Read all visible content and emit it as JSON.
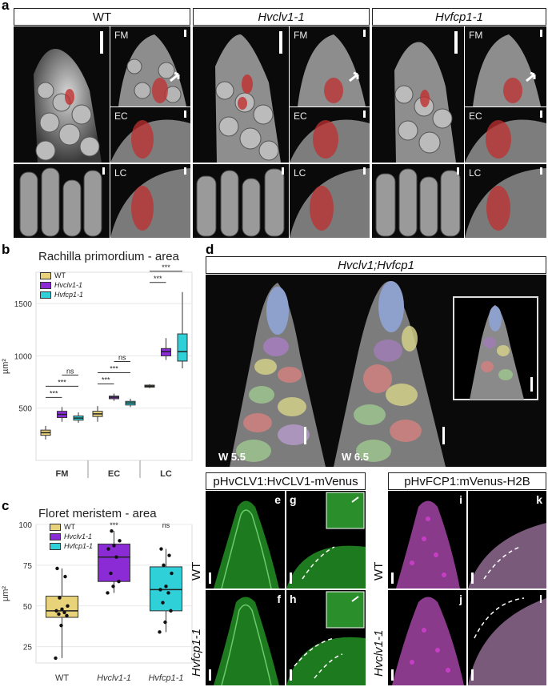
{
  "panels": {
    "a": "a",
    "b": "b",
    "c": "c",
    "d": "d"
  },
  "panel_a": {
    "headers": [
      {
        "text": "WT",
        "italic": false
      },
      {
        "text": "Hvclv1-1",
        "italic": true
      },
      {
        "text": "Hvfcp1-1",
        "italic": true
      }
    ],
    "row_tags": {
      "fm": "FM",
      "ec": "EC",
      "lc": "LC"
    }
  },
  "panel_b": {
    "title": "Rachilla primordium - area",
    "ylabel": "µm²",
    "colors": {
      "WT": "#e8d27a",
      "Hvclv1-1": "#8a2bd6",
      "Hvfcp1-1": "#2fd0d8"
    }
  },
  "panel_c": {
    "title": "Floret meristem - area",
    "ylabel": "µm²"
  },
  "panel_d": {
    "title": "Hvclv1;Hvfcp1",
    "stages": [
      "W 5.5",
      "W 6.5"
    ]
  },
  "panel_e": {
    "header": "pHvCLV1:HvCLV1-mVenus",
    "rows": [
      "WT",
      "Hvfcp1-1"
    ],
    "letters": [
      "e",
      "g",
      "f",
      "h"
    ]
  },
  "panel_i": {
    "header": "pHvFCP1:mVenus-H2B",
    "rows": [
      "WT",
      "Hvclv1-1"
    ],
    "letters": [
      "i",
      "k",
      "j",
      "l"
    ]
  },
  "chart_data": [
    {
      "type": "box",
      "title": "Rachilla primordium - area",
      "ylabel": "µm²",
      "categories": [
        "FM",
        "EC",
        "LC"
      ],
      "ylim": [
        0,
        1800
      ],
      "yticks": [
        500,
        1000,
        1500
      ],
      "series": [
        {
          "name": "WT",
          "boxes": [
            {
              "min": 200,
              "q1": 240,
              "median": 265,
              "q3": 290,
              "max": 330
            },
            {
              "min": 370,
              "q1": 420,
              "median": 445,
              "q3": 470,
              "max": 520
            },
            {
              "min": 690,
              "q1": 700,
              "median": 710,
              "q3": 720,
              "max": 730
            }
          ]
        },
        {
          "name": "Hvclv1-1",
          "boxes": [
            {
              "min": 370,
              "q1": 410,
              "median": 440,
              "q3": 470,
              "max": 510
            },
            {
              "min": 570,
              "q1": 590,
              "median": 605,
              "q3": 615,
              "max": 640
            },
            {
              "min": 960,
              "q1": 1000,
              "median": 1040,
              "q3": 1070,
              "max": 1170
            }
          ]
        },
        {
          "name": "Hvfcp1-1",
          "boxes": [
            {
              "min": 360,
              "q1": 385,
              "median": 405,
              "q3": 425,
              "max": 460
            },
            {
              "min": 510,
              "q1": 530,
              "median": 550,
              "q3": 565,
              "max": 590
            },
            {
              "min": 880,
              "q1": 950,
              "median": 1040,
              "q3": 1210,
              "max": 1610
            }
          ]
        }
      ],
      "significance": [
        {
          "group": "FM",
          "pair": "WT-Hvclv1-1",
          "label": "***"
        },
        {
          "group": "FM",
          "pair": "WT-Hvfcp1-1",
          "label": "***"
        },
        {
          "group": "FM",
          "pair": "Hvclv1-1-Hvfcp1-1",
          "label": "ns"
        },
        {
          "group": "EC",
          "pair": "WT-Hvclv1-1",
          "label": "***"
        },
        {
          "group": "EC",
          "pair": "WT-Hvfcp1-1",
          "label": "***"
        },
        {
          "group": "EC",
          "pair": "Hvclv1-1-Hvfcp1-1",
          "label": "ns"
        },
        {
          "group": "LC",
          "pair": "WT-Hvclv1-1",
          "label": "***"
        },
        {
          "group": "LC",
          "pair": "WT-Hvfcp1-1",
          "label": "***"
        },
        {
          "group": "LC",
          "pair": "Hvclv1-1-Hvfcp1-1",
          "label": "ns"
        }
      ]
    },
    {
      "type": "box",
      "title": "Floret meristem - area",
      "ylabel": "µm²",
      "categories": [
        "WT",
        "Hvclv1-1",
        "Hvfcp1-1"
      ],
      "ylim": [
        15,
        100
      ],
      "yticks": [
        25,
        50,
        75,
        100
      ],
      "boxes": [
        {
          "name": "WT",
          "min": 18,
          "q1": 43,
          "median": 47,
          "q3": 56,
          "max": 73,
          "points": [
            18,
            38,
            44,
            45,
            46,
            47,
            48,
            50,
            55,
            68,
            73
          ]
        },
        {
          "name": "Hvclv1-1",
          "min": 58,
          "q1": 65,
          "median": 80,
          "q3": 88,
          "max": 96,
          "points": [
            58,
            62,
            65,
            70,
            80,
            85,
            87,
            90,
            96
          ]
        },
        {
          "name": "Hvfcp1-1",
          "min": 34,
          "q1": 47,
          "median": 60,
          "q3": 74,
          "max": 85,
          "points": [
            34,
            40,
            47,
            52,
            58,
            60,
            62,
            70,
            75,
            81,
            85
          ]
        }
      ],
      "significance": [
        {
          "category": "Hvclv1-1",
          "label": "***"
        },
        {
          "category": "Hvfcp1-1",
          "label": "ns"
        }
      ]
    }
  ]
}
